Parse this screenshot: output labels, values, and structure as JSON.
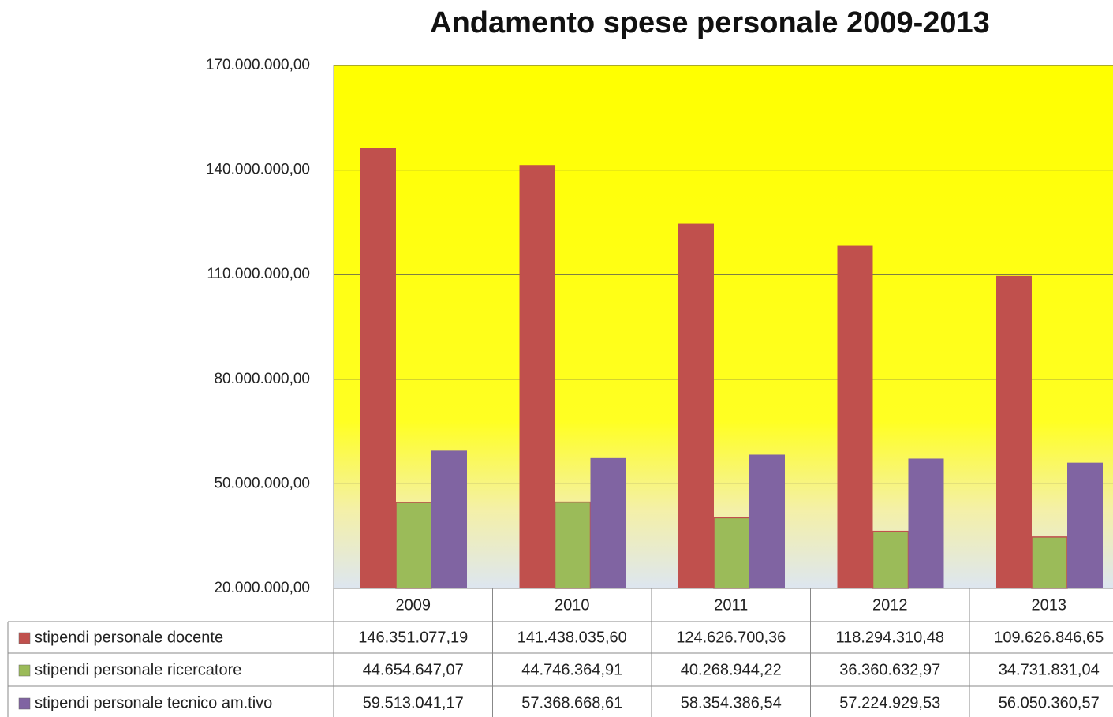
{
  "chart_data": {
    "type": "bar",
    "title": "Andamento spese personale 2009-2013",
    "categories": [
      "2009",
      "2010",
      "2011",
      "2012",
      "2013"
    ],
    "series": [
      {
        "name": "stipendi personale docente",
        "color": "#c0504d",
        "values": [
          146351077.19,
          141438035.6,
          124626700.36,
          118294310.48,
          109626846.65
        ],
        "value_labels": [
          "146.351.077,19",
          "141.438.035,60",
          "124.626.700,36",
          "118.294.310,48",
          "109.626.846,65"
        ]
      },
      {
        "name": "stipendi personale ricercatore",
        "color": "#9bbb59",
        "values": [
          44654647.07,
          44746364.91,
          40268944.22,
          36360632.97,
          34731831.04
        ],
        "value_labels": [
          "44.654.647,07",
          "44.746.364,91",
          "40.268.944,22",
          "36.360.632,97",
          "34.731.831,04"
        ]
      },
      {
        "name": "stipendi personale tecnico am.tivo",
        "color": "#8064a2",
        "values": [
          59513041.17,
          57368668.61,
          58354386.54,
          57224929.53,
          56050360.57
        ],
        "value_labels": [
          "59.513.041,17",
          "57.368.668,61",
          "58.354.386,54",
          "57.224.929,53",
          "56.050.360,57"
        ]
      }
    ],
    "ylim": [
      20000000,
      170000000
    ],
    "yticks": [
      {
        "value": 20000000,
        "label": "20.000.000,00"
      },
      {
        "value": 50000000,
        "label": "50.000.000,00"
      },
      {
        "value": 80000000,
        "label": "80.000.000,00"
      },
      {
        "value": 110000000,
        "label": "110.000.000,00"
      },
      {
        "value": 140000000,
        "label": "140.000.000,00"
      },
      {
        "value": 170000000,
        "label": "170.000.000,00"
      }
    ],
    "grid": true
  }
}
